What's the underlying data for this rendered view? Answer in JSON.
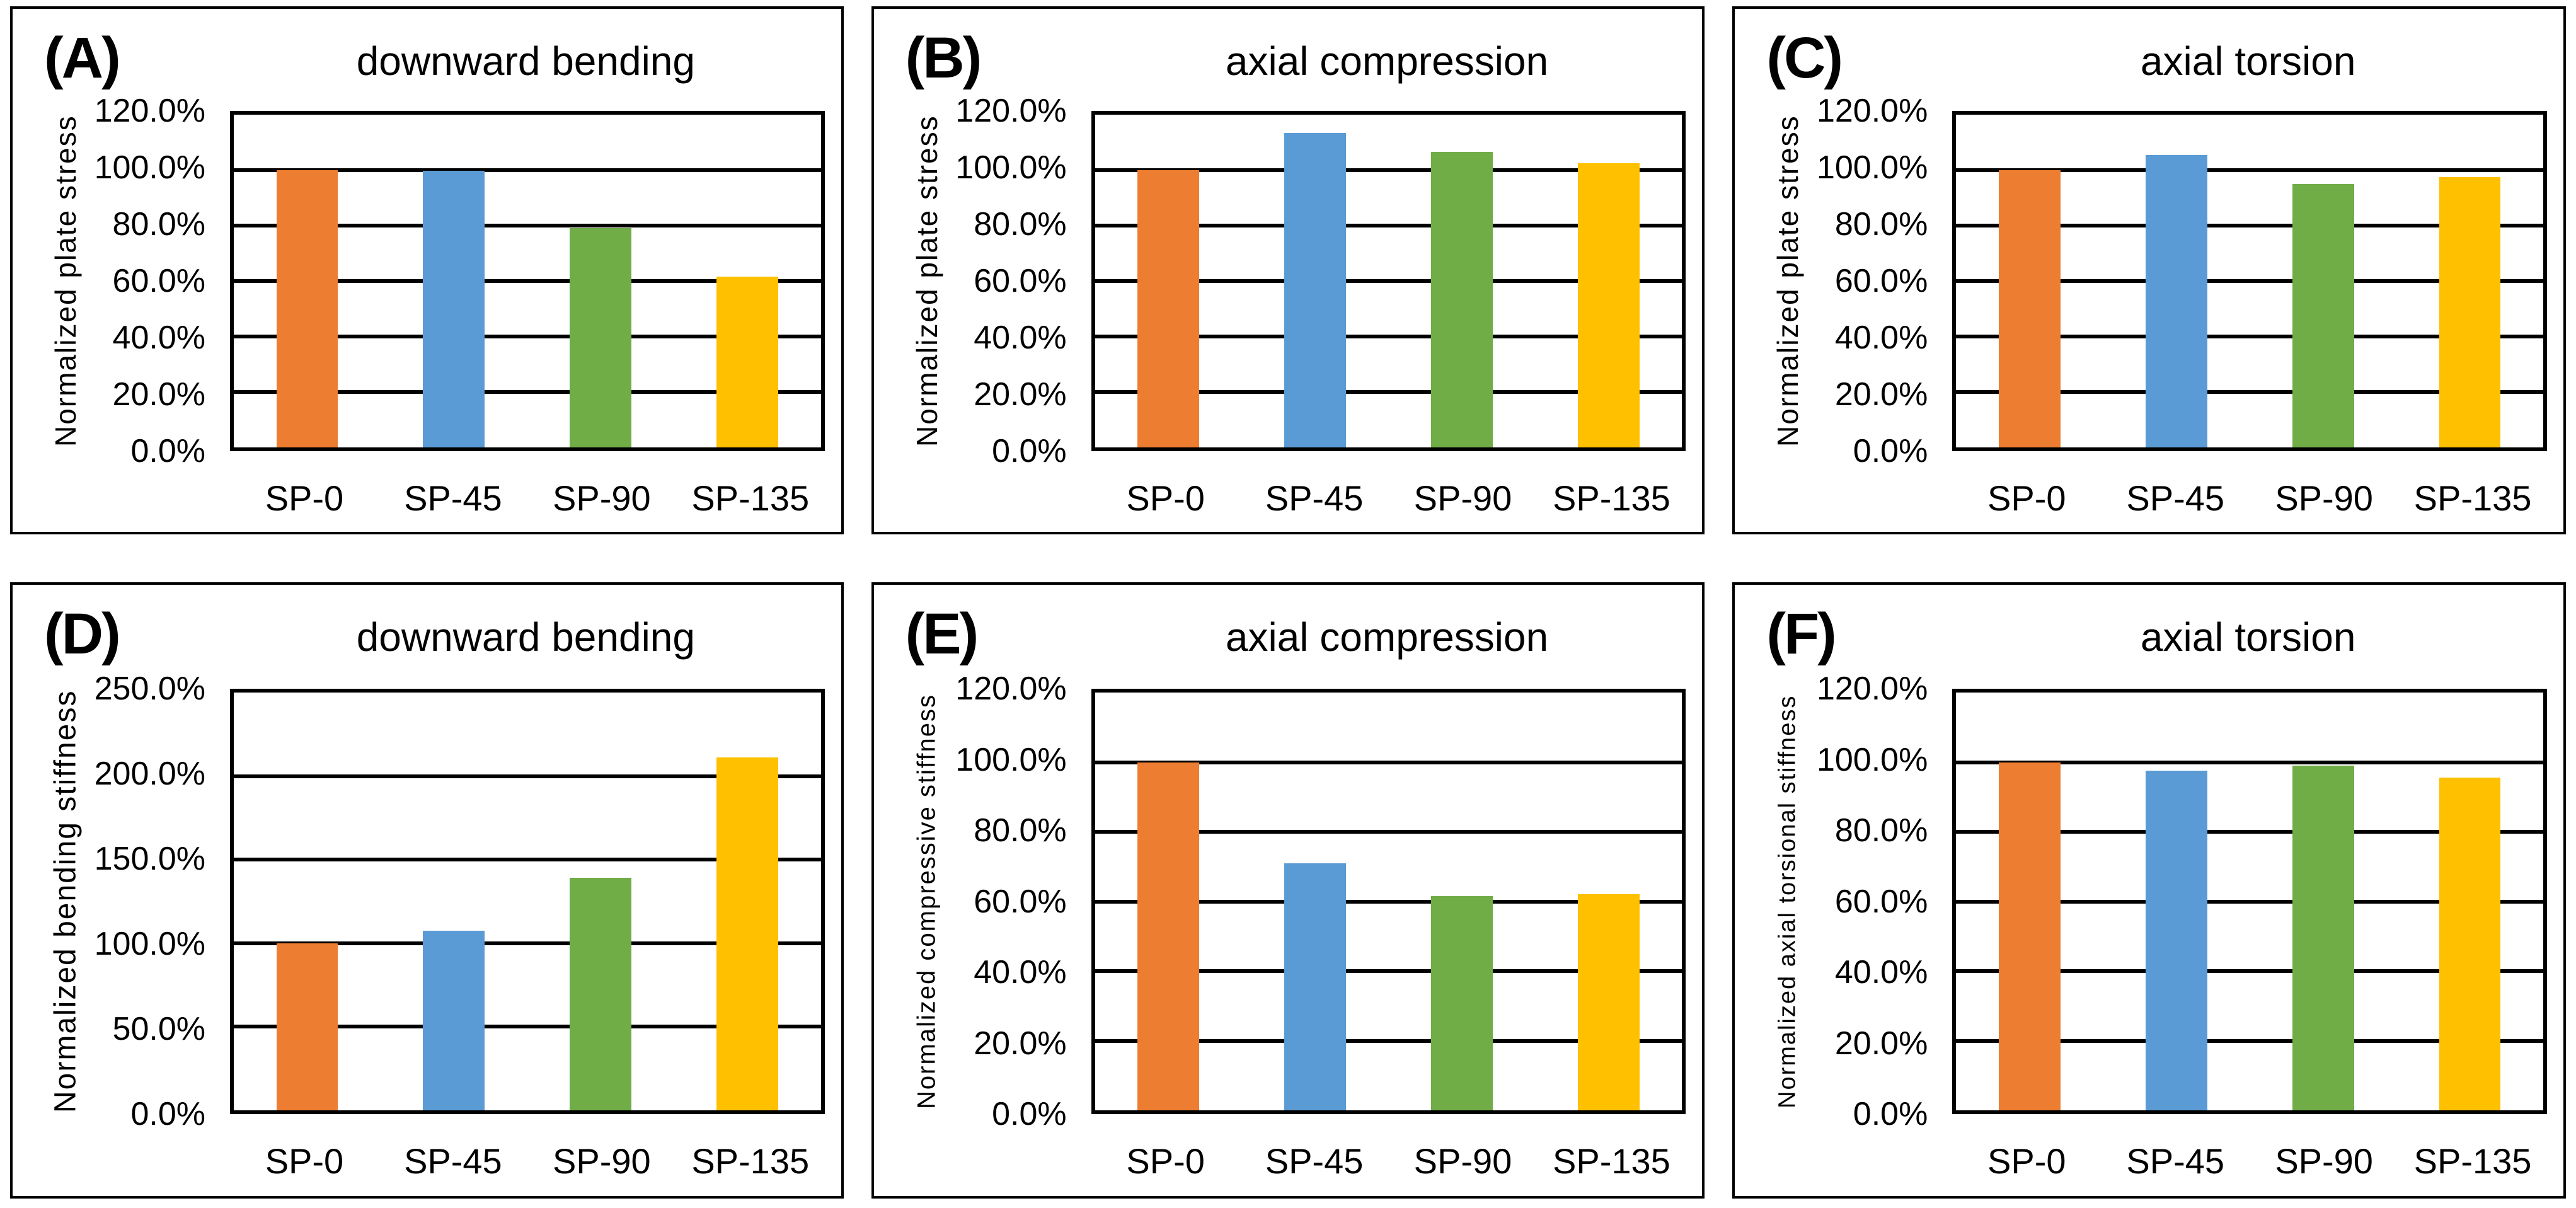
{
  "figure": {
    "description": "Six-panel bar chart figure comparing strut-plate configurations SP-0, SP-45, SP-90, SP-135 under three load cases",
    "background": "#FFFFFF"
  },
  "colors": {
    "bar_palette": [
      "#ED7D31",
      "#5B9BD5",
      "#70AD47",
      "#FFC000"
    ],
    "axis_line": "#000000",
    "text": "#000000",
    "background": "#FFFFFF"
  },
  "chart_data": [
    {
      "type": "bar",
      "panel_label": "(A)",
      "title": "downward bending",
      "ylabel": "Normalized plate stress",
      "categories": [
        "SP-0",
        "SP-45",
        "SP-90",
        "SP-135"
      ],
      "values": [
        100.0,
        99.8,
        79.0,
        61.5
      ],
      "unit": "%",
      "ylim": [
        0,
        120
      ],
      "ytick_step": 20,
      "ytick_labels": [
        "0.0%",
        "20.0%",
        "40.0%",
        "60.0%",
        "80.0%",
        "100.0%",
        "120.0%"
      ],
      "grid": true,
      "legend": "none"
    },
    {
      "type": "bar",
      "panel_label": "(B)",
      "title": "axial compression",
      "ylabel": "Normalized plate stress",
      "categories": [
        "SP-0",
        "SP-45",
        "SP-90",
        "SP-135"
      ],
      "values": [
        100.0,
        113.5,
        106.5,
        102.5
      ],
      "unit": "%",
      "ylim": [
        0,
        120
      ],
      "ytick_step": 20,
      "ytick_labels": [
        "0.0%",
        "20.0%",
        "40.0%",
        "60.0%",
        "80.0%",
        "100.0%",
        "120.0%"
      ],
      "grid": true,
      "legend": "none"
    },
    {
      "type": "bar",
      "panel_label": "(C)",
      "title": "axial torsion",
      "ylabel": "Normalized plate stress",
      "categories": [
        "SP-0",
        "SP-45",
        "SP-90",
        "SP-135"
      ],
      "values": [
        100.0,
        105.5,
        95.0,
        97.5
      ],
      "unit": "%",
      "ylim": [
        0,
        120
      ],
      "ytick_step": 20,
      "ytick_labels": [
        "0.0%",
        "20.0%",
        "40.0%",
        "60.0%",
        "80.0%",
        "100.0%",
        "120.0%"
      ],
      "grid": true,
      "legend": "none"
    },
    {
      "type": "bar",
      "panel_label": "(D)",
      "title": "downward bending",
      "ylabel": "Normalized bending stiffness",
      "categories": [
        "SP-0",
        "SP-45",
        "SP-90",
        "SP-135"
      ],
      "values": [
        100.0,
        107.5,
        139.0,
        211.0
      ],
      "unit": "%",
      "ylim": [
        0,
        250
      ],
      "ytick_step": 50,
      "ytick_labels": [
        "0.0%",
        "50.0%",
        "100.0%",
        "150.0%",
        "200.0%",
        "250.0%"
      ],
      "grid": true,
      "legend": "none"
    },
    {
      "type": "bar",
      "panel_label": "(E)",
      "title": "axial compression",
      "ylabel": "Normalized compressive stiffness",
      "categories": [
        "SP-0",
        "SP-45",
        "SP-90",
        "SP-135"
      ],
      "values": [
        100.0,
        71.0,
        61.5,
        62.0
      ],
      "unit": "%",
      "ylim": [
        0,
        120
      ],
      "ytick_step": 20,
      "ytick_labels": [
        "0.0%",
        "20.0%",
        "40.0%",
        "60.0%",
        "80.0%",
        "100.0%",
        "120.0%"
      ],
      "grid": true,
      "legend": "none"
    },
    {
      "type": "bar",
      "panel_label": "(F)",
      "title": "axial torsion",
      "ylabel": "Normalized axial torsional stiffness",
      "categories": [
        "SP-0",
        "SP-45",
        "SP-90",
        "SP-135"
      ],
      "values": [
        100.0,
        97.5,
        99.0,
        95.5
      ],
      "unit": "%",
      "ylim": [
        0,
        120
      ],
      "ytick_step": 20,
      "ytick_labels": [
        "0.0%",
        "20.0%",
        "40.0%",
        "60.0%",
        "80.0%",
        "100.0%",
        "120.0%"
      ],
      "grid": true,
      "legend": "none"
    }
  ]
}
